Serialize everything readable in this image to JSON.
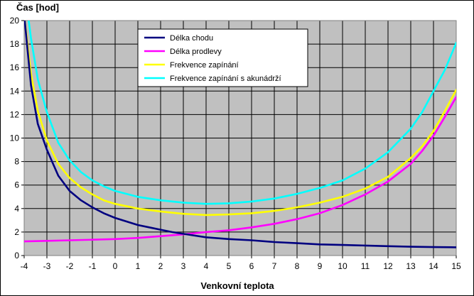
{
  "chart_data": {
    "type": "line",
    "title": "",
    "xlabel": "Venkovní teplota",
    "ylabel": "Čas [hod]",
    "xlim": [
      -4,
      15
    ],
    "ylim": [
      0,
      20
    ],
    "x_ticks": [
      "-4",
      "-3",
      "-2",
      "-1",
      "0",
      "1",
      "2",
      "3",
      "4",
      "5",
      "6",
      "7",
      "8",
      "9",
      "10",
      "11",
      "12",
      "13",
      "14",
      "15"
    ],
    "y_ticks": [
      "0",
      "2",
      "4",
      "6",
      "8",
      "10",
      "12",
      "14",
      "16",
      "18",
      "20"
    ],
    "grid": true,
    "plot_background": "#c0c0c0",
    "legend_position": "top-center",
    "series": [
      {
        "name": "Délka chodu",
        "color": "#000080",
        "points": [
          [
            -4,
            20.5
          ],
          [
            -3.7,
            14.5
          ],
          [
            -3.4,
            11.2
          ],
          [
            -3,
            9.0
          ],
          [
            -2.5,
            6.8
          ],
          [
            -2,
            5.5
          ],
          [
            -1.5,
            4.7
          ],
          [
            -1,
            4.1
          ],
          [
            -0.5,
            3.6
          ],
          [
            0,
            3.2
          ],
          [
            0.5,
            2.9
          ],
          [
            1,
            2.6
          ],
          [
            1.5,
            2.4
          ],
          [
            2,
            2.2
          ],
          [
            2.5,
            2.0
          ],
          [
            3,
            1.85
          ],
          [
            3.5,
            1.7
          ],
          [
            4,
            1.55
          ],
          [
            5,
            1.4
          ],
          [
            6,
            1.3
          ],
          [
            7,
            1.15
          ],
          [
            8,
            1.05
          ],
          [
            9,
            0.95
          ],
          [
            10,
            0.9
          ],
          [
            11,
            0.85
          ],
          [
            12,
            0.8
          ],
          [
            13,
            0.75
          ],
          [
            14,
            0.72
          ],
          [
            15,
            0.7
          ]
        ]
      },
      {
        "name": "Délka prodlevy",
        "color": "#ff00ff",
        "points": [
          [
            -4,
            1.2
          ],
          [
            -3,
            1.25
          ],
          [
            -2,
            1.3
          ],
          [
            -1,
            1.35
          ],
          [
            0,
            1.4
          ],
          [
            1,
            1.5
          ],
          [
            2,
            1.65
          ],
          [
            3,
            1.8
          ],
          [
            4,
            2.0
          ],
          [
            5,
            2.15
          ],
          [
            6,
            2.4
          ],
          [
            7,
            2.7
          ],
          [
            8,
            3.1
          ],
          [
            9,
            3.6
          ],
          [
            10,
            4.3
          ],
          [
            11,
            5.2
          ],
          [
            12,
            6.3
          ],
          [
            13,
            7.8
          ],
          [
            13.5,
            8.9
          ],
          [
            14,
            10.2
          ],
          [
            14.5,
            11.8
          ],
          [
            15,
            13.5
          ]
        ]
      },
      {
        "name": "Frekvence zapínání",
        "color": "#ffff00",
        "points": [
          [
            -4,
            20.5
          ],
          [
            -3.7,
            15.5
          ],
          [
            -3.4,
            12.3
          ],
          [
            -3,
            9.8
          ],
          [
            -2.5,
            7.8
          ],
          [
            -2,
            6.6
          ],
          [
            -1.5,
            5.8
          ],
          [
            -1,
            5.2
          ],
          [
            -0.5,
            4.7
          ],
          [
            0,
            4.4
          ],
          [
            1,
            4.0
          ],
          [
            2,
            3.75
          ],
          [
            3,
            3.55
          ],
          [
            4,
            3.45
          ],
          [
            5,
            3.5
          ],
          [
            6,
            3.6
          ],
          [
            7,
            3.8
          ],
          [
            8,
            4.1
          ],
          [
            9,
            4.5
          ],
          [
            10,
            5.0
          ],
          [
            11,
            5.7
          ],
          [
            12,
            6.7
          ],
          [
            13,
            8.3
          ],
          [
            13.5,
            9.3
          ],
          [
            14,
            10.6
          ],
          [
            14.5,
            12.3
          ],
          [
            15,
            14.1
          ]
        ]
      },
      {
        "name": "Frekvence zapínání s akunádrží",
        "color": "#00ffff",
        "points": [
          [
            -4,
            23.0
          ],
          [
            -3.7,
            18.5
          ],
          [
            -3.4,
            15.0
          ],
          [
            -3,
            12.2
          ],
          [
            -2.5,
            9.6
          ],
          [
            -2,
            8.1
          ],
          [
            -1.5,
            7.1
          ],
          [
            -1,
            6.4
          ],
          [
            -0.5,
            5.9
          ],
          [
            0,
            5.5
          ],
          [
            1,
            5.0
          ],
          [
            2,
            4.7
          ],
          [
            3,
            4.5
          ],
          [
            4,
            4.4
          ],
          [
            5,
            4.45
          ],
          [
            6,
            4.6
          ],
          [
            7,
            4.85
          ],
          [
            8,
            5.25
          ],
          [
            9,
            5.75
          ],
          [
            10,
            6.4
          ],
          [
            11,
            7.4
          ],
          [
            12,
            8.8
          ],
          [
            13,
            10.8
          ],
          [
            13.5,
            12.2
          ],
          [
            14,
            14.0
          ],
          [
            14.5,
            15.8
          ],
          [
            15,
            18.1
          ]
        ]
      }
    ]
  }
}
